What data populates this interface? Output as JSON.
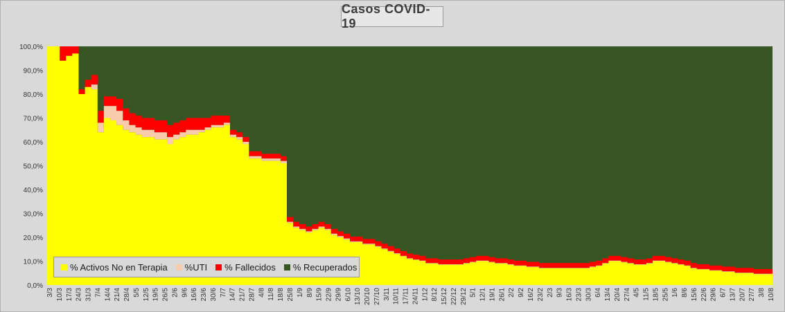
{
  "chart_data": {
    "type": "area",
    "stacked": true,
    "percent": true,
    "title": "Casos  COVID-19",
    "ylim": [
      0,
      100
    ],
    "y_ticks": [
      "0,0%",
      "10,0%",
      "20,0%",
      "30,0%",
      "40,0%",
      "50,0%",
      "60,0%",
      "70,0%",
      "80,0%",
      "90,0%",
      "100,0%"
    ],
    "x_ticks": [
      "3/3",
      "10/3",
      "17/3",
      "24/3",
      "31/3",
      "7/4",
      "14/4",
      "21/4",
      "28/4",
      "5/5",
      "12/5",
      "19/5",
      "26/5",
      "2/6",
      "9/6",
      "16/6",
      "23/6",
      "30/6",
      "7/7",
      "14/7",
      "21/7",
      "28/7",
      "4/8",
      "11/8",
      "18/8",
      "25/8",
      "1/9",
      "8/9",
      "15/9",
      "22/9",
      "29/9",
      "6/10",
      "13/10",
      "20/10",
      "27/10",
      "3/11",
      "10/11",
      "17/11",
      "24/11",
      "1/12",
      "8/12",
      "15/12",
      "22/12",
      "29/12",
      "5/1",
      "12/1",
      "19/1",
      "26/1",
      "2/2",
      "9/2",
      "16/2",
      "23/2",
      "2/3",
      "9/3",
      "16/3",
      "23/3",
      "30/3",
      "6/4",
      "13/4",
      "20/4",
      "27/4",
      "4/5",
      "11/5",
      "18/5",
      "25/5",
      "1/6",
      "8/6",
      "15/6",
      "22/6",
      "29/6",
      "6/7",
      "13/7",
      "20/7",
      "27/7",
      "3/8",
      "10/8"
    ],
    "series": [
      {
        "name": "% Activos No en Terapia",
        "color": "#ffff00",
        "values": [
          100,
          100,
          94,
          96,
          97,
          80,
          83,
          82,
          64,
          70,
          69,
          67,
          65,
          64,
          63,
          62,
          62,
          61,
          61,
          59,
          61,
          62,
          63,
          63,
          64,
          65,
          66,
          66,
          67,
          62,
          61,
          59,
          53,
          53,
          52,
          52,
          52,
          51,
          26,
          24,
          23,
          22,
          23,
          24,
          23,
          21,
          20,
          19,
          18,
          18,
          17,
          17,
          16,
          15,
          14,
          13,
          12,
          11,
          10.5,
          10,
          9,
          9,
          8.5,
          8.5,
          8.5,
          8.5,
          9,
          9.5,
          10,
          10,
          9.5,
          9,
          9,
          8.5,
          8,
          8,
          7.5,
          7.5,
          7,
          7,
          7,
          7,
          7,
          7,
          7,
          7,
          7.5,
          8,
          9,
          10,
          10,
          9.5,
          9,
          8.5,
          8.5,
          9,
          10,
          10,
          9.5,
          9,
          8.5,
          8,
          7,
          6.5,
          6.5,
          6,
          6,
          5.5,
          5.5,
          5,
          5,
          5,
          4.5,
          4.5,
          4.5
        ]
      },
      {
        "name": "%UTI",
        "color": "#f8cbad",
        "values": [
          0,
          0,
          0,
          0,
          0,
          0,
          0,
          2,
          4,
          5,
          6,
          6,
          4,
          3,
          3,
          3,
          3,
          3,
          3,
          3,
          2,
          2,
          2,
          2,
          1,
          1,
          1,
          1,
          1,
          1,
          1,
          1,
          1,
          1,
          1,
          1,
          1,
          1,
          0.5,
          0.5,
          0.5,
          0.5,
          0.5,
          0.5,
          0.5,
          0.5,
          0.5,
          0.5,
          0.3,
          0.3,
          0.3,
          0.3,
          0.3,
          0.3,
          0.3,
          0.3,
          0.2,
          0.2,
          0.2,
          0.2,
          0.2,
          0.2,
          0.2,
          0.2,
          0.2,
          0.2,
          0.2,
          0.2,
          0.2,
          0.2,
          0.2,
          0.2,
          0.2,
          0.2,
          0.2,
          0.2,
          0.2,
          0.2,
          0.2,
          0.2,
          0.2,
          0.2,
          0.2,
          0.2,
          0.2,
          0.2,
          0.2,
          0.2,
          0.2,
          0.2,
          0.2,
          0.2,
          0.2,
          0.2,
          0.2,
          0.2,
          0.2,
          0.2,
          0.2,
          0.2,
          0.2,
          0.2,
          0.2,
          0.2,
          0.2,
          0.2,
          0.2,
          0.2,
          0.2,
          0.2,
          0.2,
          0.2,
          0.2,
          0.2,
          0.2
        ]
      },
      {
        "name": "% Fallecidos",
        "color": "#ff0000",
        "values": [
          0,
          0,
          6,
          4,
          3,
          2,
          3,
          4,
          5,
          4,
          4,
          5,
          5,
          5,
          5,
          5,
          5,
          5,
          5,
          5,
          5,
          5,
          5,
          5,
          5,
          4,
          4,
          4,
          3,
          2,
          2,
          2,
          2,
          2,
          2,
          2,
          2,
          2,
          2,
          2,
          2,
          2,
          2,
          2,
          2,
          2,
          2,
          2,
          2,
          2,
          2,
          2,
          2,
          2,
          2,
          2,
          2,
          2,
          2,
          2,
          2,
          2,
          2,
          2,
          2,
          2,
          2,
          2,
          2,
          2,
          2,
          2,
          2,
          2,
          2,
          2,
          2,
          2,
          2,
          2,
          2,
          2,
          2,
          2,
          2,
          2,
          2,
          2,
          2,
          2,
          2,
          2,
          2,
          2,
          2,
          2,
          2,
          2,
          2,
          2,
          2,
          2,
          2,
          2,
          2,
          2,
          2,
          2,
          2,
          2,
          2,
          2,
          2,
          2,
          2
        ]
      },
      {
        "name": "% Recuperados",
        "color": "#375623",
        "values": "remainder_to_100"
      }
    ],
    "legend_position": "bottom-left",
    "grid": false
  }
}
